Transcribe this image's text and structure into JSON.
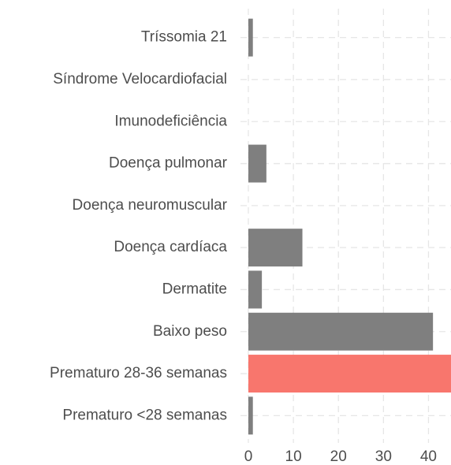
{
  "chart_data": {
    "type": "hbar",
    "categories": [
      "Tríssomia 21",
      "Síndrome Velocardiofacial",
      "Imunodeficiência",
      "Doença pulmonar",
      "Doença neuromuscular",
      "Doença cardíaca",
      "Dermatite",
      "Baixo peso",
      "Prematuro 28-36 semanas",
      "Prematuro <28 semanas"
    ],
    "values": [
      1,
      0,
      0,
      4,
      0,
      12,
      3,
      41,
      45,
      1
    ],
    "colors": [
      "#7f7f7f",
      "#7f7f7f",
      "#7f7f7f",
      "#7f7f7f",
      "#7f7f7f",
      "#7f7f7f",
      "#7f7f7f",
      "#7f7f7f",
      "#f8766d",
      "#7f7f7f"
    ],
    "xlim": [
      0,
      45
    ],
    "xticks": [
      0,
      10,
      20,
      30,
      40
    ],
    "grid": true
  }
}
